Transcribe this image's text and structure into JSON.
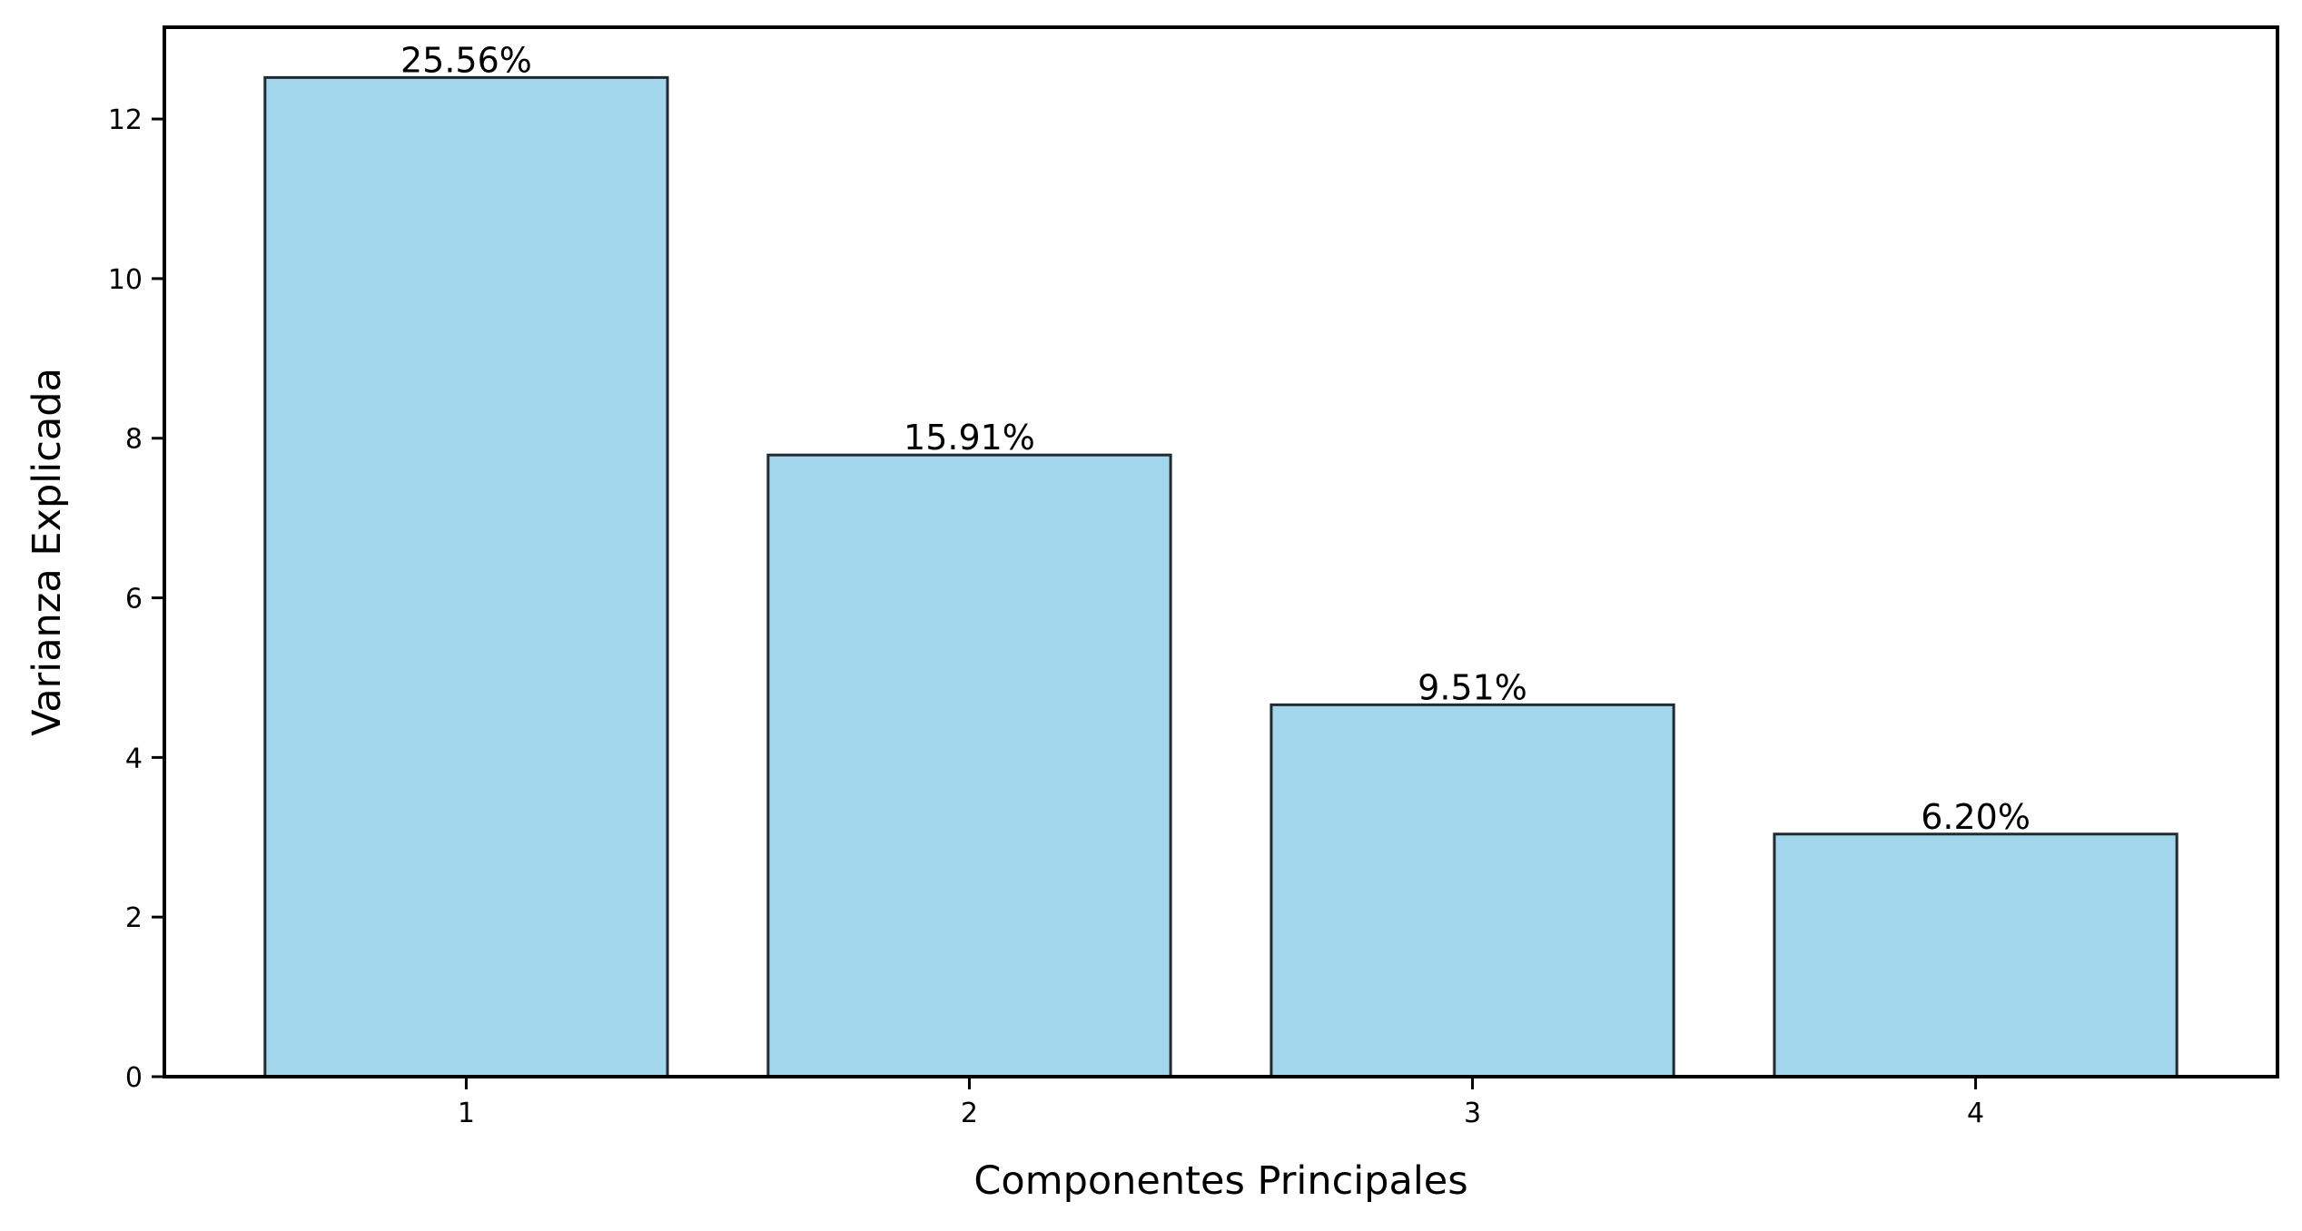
{
  "chart_data": {
    "type": "bar",
    "categories": [
      "1",
      "2",
      "3",
      "4"
    ],
    "values": [
      12.52,
      7.79,
      4.66,
      3.04
    ],
    "data_labels": [
      "25.56%",
      "15.91%",
      "9.51%",
      "6.20%"
    ],
    "xlabel": "Componentes Principales",
    "ylabel": "Varianza Explicada",
    "ylim": [
      0,
      13.15
    ],
    "yticks": [
      0,
      2,
      4,
      6,
      8,
      10,
      12
    ],
    "grid": false,
    "colors": {
      "bar_fill": "#a1d6ed",
      "bar_edge": "#1f2a33",
      "axis": "#000000"
    }
  }
}
